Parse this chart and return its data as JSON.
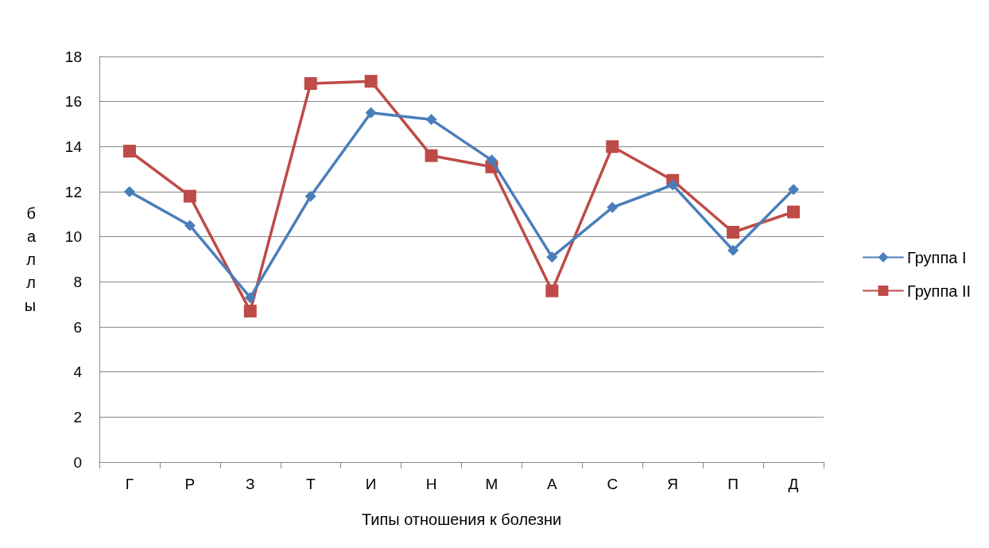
{
  "chart_data": {
    "type": "line",
    "xlabel": "Типы отношения к болезни",
    "ylabel": "баллы",
    "categories": [
      "Г",
      "Р",
      "З",
      "Т",
      "И",
      "Н",
      "М",
      "А",
      "С",
      "Я",
      "П",
      "Д"
    ],
    "series": [
      {
        "name": "Группа I",
        "color": "#4a7ebb",
        "marker": "diamond",
        "values": [
          12.0,
          10.5,
          7.3,
          11.8,
          15.5,
          15.2,
          13.4,
          9.1,
          11.3,
          12.3,
          9.4,
          12.1
        ]
      },
      {
        "name": "Группа II",
        "color": "#be4b48",
        "marker": "square",
        "values": [
          13.8,
          11.8,
          6.7,
          16.8,
          16.9,
          13.6,
          13.1,
          7.6,
          14.0,
          12.5,
          10.2,
          11.1
        ]
      }
    ],
    "ylim": [
      0,
      18
    ],
    "yticks": [
      0,
      2,
      4,
      6,
      8,
      10,
      12,
      14,
      16,
      18
    ],
    "grid": "y",
    "legend": "right",
    "line_style": "solid"
  }
}
